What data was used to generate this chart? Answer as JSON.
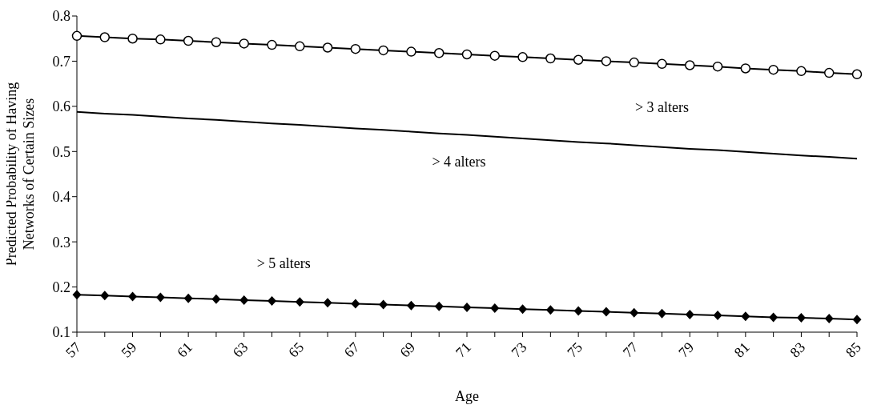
{
  "chart_data": {
    "type": "line",
    "xlabel": "Age",
    "ylabel": "Predicted Probability of Having Networks of Certain Sizes",
    "categories": [
      "57",
      null,
      "59",
      null,
      "61",
      null,
      "63",
      null,
      "65",
      null,
      "67",
      null,
      "69",
      null,
      "71",
      null,
      "73",
      null,
      "75",
      null,
      "77",
      null,
      "79",
      null,
      "81",
      null,
      "83",
      null,
      "85"
    ],
    "ylim": [
      0.1,
      0.8
    ],
    "yticks": [
      0.1,
      0.2,
      0.3,
      0.4,
      0.5,
      0.6,
      0.7,
      0.8
    ],
    "grid": false,
    "legend": false,
    "series": [
      {
        "name": "> 3 alters",
        "color": "#000000",
        "marker": "circle",
        "values": [
          0.756,
          0.753,
          0.75,
          0.748,
          0.745,
          0.742,
          0.739,
          0.736,
          0.733,
          0.73,
          0.727,
          0.724,
          0.721,
          0.718,
          0.715,
          0.712,
          0.709,
          0.706,
          0.703,
          0.7,
          0.697,
          0.694,
          0.691,
          0.688,
          0.684,
          0.681,
          0.678,
          0.674,
          0.671
        ]
      },
      {
        "name": "> 4 alters",
        "color": "#000000",
        "marker": "none",
        "values": [
          0.588,
          0.584,
          0.581,
          0.577,
          0.573,
          0.57,
          0.566,
          0.562,
          0.559,
          0.555,
          0.551,
          0.548,
          0.544,
          0.54,
          0.537,
          0.533,
          0.529,
          0.525,
          0.521,
          0.518,
          0.514,
          0.51,
          0.506,
          0.503,
          0.499,
          0.495,
          0.491,
          0.488,
          0.484
        ]
      },
      {
        "name": "> 5 alters",
        "color": "#000000",
        "marker": "diamond",
        "values": [
          0.183,
          0.181,
          0.179,
          0.177,
          0.175,
          0.173,
          0.171,
          0.169,
          0.167,
          0.165,
          0.163,
          0.161,
          0.159,
          0.157,
          0.155,
          0.153,
          0.151,
          0.149,
          0.147,
          0.145,
          0.143,
          0.141,
          0.139,
          0.137,
          0.135,
          0.133,
          0.132,
          0.13,
          0.128
        ]
      }
    ]
  }
}
